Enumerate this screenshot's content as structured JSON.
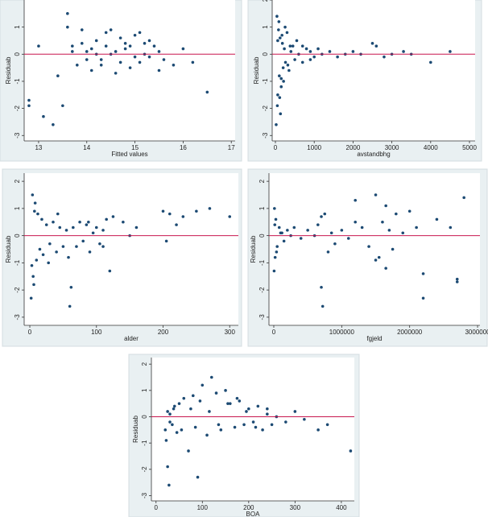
{
  "chart_data": [
    {
      "type": "scatter",
      "x_label": "Fitted values",
      "y_label": "Residuab",
      "color": "#1c4a73",
      "hline": 0,
      "hline_color": "#c8174f",
      "xlim": [
        12.7,
        17.08
      ],
      "ylim": [
        -3.2,
        2.0
      ],
      "xticks": [
        13,
        14,
        15,
        16,
        17
      ],
      "yticks": [
        -3,
        -2,
        -1,
        0,
        1
      ],
      "x": [
        13.1,
        13.3,
        13.5,
        13.6,
        13.7,
        13.8,
        13.9,
        14.0,
        14.1,
        14.2,
        14.3,
        14.4,
        14.5,
        14.6,
        14.7,
        14.8,
        14.9,
        15.0,
        15.1,
        15.2,
        15.3,
        15.4,
        15.5,
        15.6,
        15.8,
        16.0,
        16.2,
        16.5,
        12.8,
        12.8,
        13.0,
        13.4,
        13.6,
        13.9,
        14.1,
        14.3,
        14.5,
        14.7,
        14.9,
        15.1,
        15.3,
        15.5,
        14.2,
        14.6,
        15.0,
        14.4,
        14.8,
        15.2,
        13.7,
        14.0
      ],
      "values": [
        -2.3,
        -2.6,
        -1.9,
        1.5,
        0.3,
        -0.4,
        0.9,
        0.1,
        -0.6,
        0.5,
        -0.2,
        0.8,
        0.0,
        -0.7,
        0.6,
        0.2,
        -0.5,
        0.7,
        -0.3,
        0.4,
        -0.1,
        0.3,
        0.1,
        -0.2,
        -0.4,
        0.2,
        -0.3,
        -1.4,
        -1.7,
        -1.9,
        0.3,
        -0.8,
        1.0,
        0.4,
        0.2,
        -0.4,
        0.9,
        -0.3,
        0.3,
        0.8,
        0.5,
        -0.6,
        0.0,
        0.1,
        -0.1,
        0.3,
        0.4,
        0.0,
        0.1,
        -0.2
      ]
    },
    {
      "type": "scatter",
      "x_label": "avstandbhg",
      "y_label": "Residuab",
      "color": "#1c4a73",
      "hline": 0,
      "hline_color": "#c8174f",
      "xlim": [
        -83,
        5145
      ],
      "ylim": [
        -3.2,
        2.0
      ],
      "xticks": [
        0,
        1000,
        2000,
        3000,
        4000,
        5000
      ],
      "yticks": [
        -3,
        -2,
        -1,
        0,
        1,
        2
      ],
      "x": [
        20,
        40,
        60,
        80,
        100,
        120,
        150,
        180,
        200,
        230,
        260,
        300,
        350,
        400,
        450,
        500,
        550,
        600,
        700,
        800,
        900,
        1000,
        1100,
        1200,
        1400,
        1600,
        1800,
        2000,
        2200,
        2500,
        2800,
        3000,
        3300,
        3500,
        4000,
        4500,
        50,
        90,
        130,
        170,
        210,
        250,
        320,
        380,
        150,
        60,
        110,
        700,
        900,
        2600
      ],
      "values": [
        -2.6,
        1.4,
        -1.5,
        0.9,
        -0.8,
        0.6,
        -1.2,
        0.4,
        -0.5,
        0.2,
        -0.3,
        0.8,
        -0.6,
        0.1,
        0.3,
        -0.2,
        0.5,
        0.0,
        -0.3,
        0.2,
        0.1,
        -0.1,
        0.2,
        0.0,
        0.1,
        -0.1,
        0.0,
        0.1,
        0.0,
        0.4,
        -0.1,
        0.0,
        0.1,
        0.0,
        -0.3,
        0.1,
        -1.9,
        1.2,
        -2.2,
        0.7,
        -1.0,
        1.0,
        -0.4,
        0.3,
        -0.9,
        0.5,
        -1.6,
        0.3,
        -0.2,
        0.3
      ]
    },
    {
      "type": "scatter",
      "x_label": "alder",
      "y_label": "Residuab",
      "color": "#1c4a73",
      "hline": 0,
      "hline_color": "#c8174f",
      "xlim": [
        -8.5,
        313
      ],
      "ylim": [
        -3.3,
        2.3
      ],
      "xticks": [
        0,
        100,
        200,
        300
      ],
      "yticks": [
        -3,
        -2,
        -1,
        0,
        1,
        2
      ],
      "x": [
        2,
        4,
        6,
        8,
        10,
        12,
        15,
        18,
        20,
        25,
        30,
        35,
        40,
        45,
        50,
        55,
        60,
        62,
        65,
        70,
        75,
        80,
        85,
        90,
        95,
        100,
        105,
        110,
        115,
        120,
        125,
        140,
        150,
        160,
        200,
        205,
        210,
        220,
        230,
        250,
        270,
        300,
        5,
        3,
        7,
        28,
        42,
        58,
        88,
        110
      ],
      "values": [
        -2.3,
        1.5,
        -1.8,
        1.2,
        -0.9,
        0.8,
        -0.5,
        0.6,
        -0.7,
        0.4,
        -0.3,
        0.5,
        -0.6,
        0.3,
        -0.4,
        0.2,
        -2.6,
        -1.9,
        0.3,
        -0.4,
        0.5,
        -0.2,
        0.4,
        -0.6,
        0.1,
        0.3,
        -0.3,
        0.2,
        0.6,
        -1.3,
        0.7,
        0.5,
        0.0,
        0.3,
        0.9,
        -0.2,
        0.8,
        0.4,
        0.7,
        0.9,
        1.0,
        0.7,
        -1.5,
        -1.1,
        0.9,
        -1.0,
        0.8,
        -0.8,
        0.5,
        -0.4
      ]
    },
    {
      "type": "scatter",
      "x_label": "fgjeld",
      "y_label": "Residuab",
      "color": "#1c4a73",
      "hline": 0,
      "hline_color": "#c8174f",
      "xlim": [
        -71000,
        3035000
      ],
      "ylim": [
        -3.3,
        2.3
      ],
      "xticks": [
        0,
        1000000,
        2000000,
        3000000
      ],
      "yticks": [
        -3,
        -2,
        -1,
        0,
        1,
        2
      ],
      "x": [
        5000,
        10000,
        20000,
        30000,
        50000,
        80000,
        100000,
        150000,
        200000,
        250000,
        300000,
        400000,
        500000,
        600000,
        650000,
        700000,
        720000,
        750000,
        800000,
        850000,
        900000,
        1000000,
        1100000,
        1200000,
        1300000,
        1400000,
        1500000,
        1550000,
        1600000,
        1650000,
        1700000,
        1750000,
        1800000,
        1900000,
        2000000,
        2100000,
        2200000,
        2200000,
        2400000,
        2600000,
        2700000,
        2700000,
        2800000,
        15000,
        40000,
        120000,
        700000,
        1650000,
        1500000,
        1200000
      ],
      "values": [
        -1.3,
        1.0,
        -0.8,
        0.6,
        -0.4,
        0.3,
        0.1,
        -0.2,
        0.2,
        0.0,
        0.3,
        -0.1,
        0.2,
        0.0,
        0.4,
        -1.9,
        -2.6,
        0.8,
        -0.6,
        0.1,
        -0.3,
        0.2,
        -0.1,
        1.3,
        0.3,
        -0.4,
        1.5,
        -0.8,
        0.5,
        -1.2,
        0.2,
        -0.5,
        0.8,
        0.1,
        0.9,
        0.3,
        -2.3,
        -1.4,
        0.6,
        0.3,
        -1.6,
        -1.7,
        1.4,
        0.4,
        -0.6,
        0.1,
        0.7,
        1.1,
        -0.9,
        0.5
      ]
    },
    {
      "type": "scatter",
      "x_label": "BOA",
      "y_label": "Residuab",
      "color": "#1c4a73",
      "hline": 0,
      "hline_color": "#c8174f",
      "xlim": [
        -10,
        428
      ],
      "ylim": [
        -3.2,
        2.25
      ],
      "xticks": [
        0,
        100,
        200,
        300,
        400
      ],
      "yticks": [
        -3,
        -2,
        -1,
        0,
        1,
        2
      ],
      "x": [
        20,
        22,
        25,
        28,
        30,
        35,
        40,
        45,
        50,
        60,
        70,
        80,
        90,
        100,
        110,
        120,
        130,
        140,
        150,
        160,
        170,
        180,
        190,
        200,
        210,
        220,
        230,
        240,
        250,
        260,
        280,
        300,
        320,
        350,
        370,
        420,
        25,
        30,
        38,
        55,
        75,
        85,
        95,
        115,
        135,
        155,
        175,
        195,
        215,
        240
      ],
      "values": [
        -0.5,
        -0.9,
        -1.9,
        -2.6,
        0.1,
        -0.3,
        0.4,
        -0.6,
        0.5,
        0.7,
        -1.3,
        0.8,
        -2.3,
        1.2,
        -0.7,
        1.5,
        0.9,
        -0.5,
        1.0,
        0.5,
        -0.4,
        0.6,
        -0.3,
        0.3,
        -0.2,
        0.4,
        -0.5,
        0.1,
        -0.3,
        0.0,
        -0.2,
        0.2,
        -0.1,
        -0.5,
        -0.3,
        -1.3,
        0.2,
        -0.2,
        0.3,
        -0.5,
        0.3,
        -0.4,
        0.6,
        0.2,
        -0.3,
        0.5,
        0.7,
        0.2,
        -0.4,
        0.3
      ]
    }
  ]
}
